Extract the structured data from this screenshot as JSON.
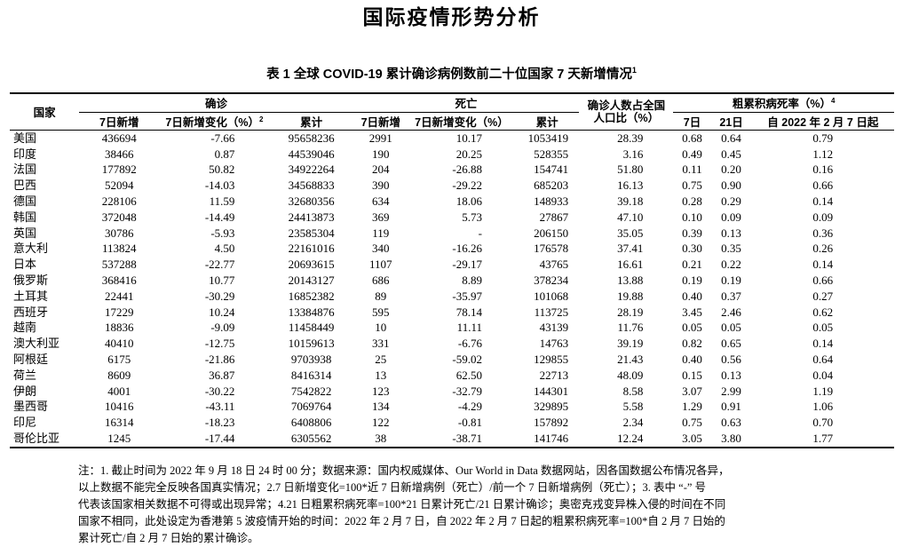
{
  "page": {
    "title": "国际疫情形势分析"
  },
  "table": {
    "caption": {
      "text": "表 1 全球 COVID-19 累计确诊病例数前二十位国家 7 天新增情况",
      "sup": "1"
    },
    "header": {
      "country": "国家",
      "confirmed_group": "确诊",
      "death_group": "死亡",
      "pop_ratio_line1": "确诊人数占全国",
      "pop_ratio_line2": "人口比（%）",
      "cfr_group": "粗累积病死率（%）",
      "cfr_group_sup": "4",
      "sub": {
        "new7": "7日新增",
        "new7_change": "7日新增变化（%）",
        "new7_change_sup": "2",
        "cumulative": "累计",
        "d_new7": "7日新增",
        "d_new7_change": "7日新增变化（%）",
        "d_cumulative": "累计",
        "day7": "7日",
        "day21": "21日",
        "since_feb7": "自 2022 年 2 月 7 日起"
      }
    },
    "rows": [
      [
        "美国",
        "436694",
        "-7.66",
        "95658236",
        "2991",
        "10.17",
        "1053419",
        "28.39",
        "0.68",
        "0.64",
        "0.79"
      ],
      [
        "印度",
        "38466",
        "0.87",
        "44539046",
        "190",
        "20.25",
        "528355",
        "3.16",
        "0.49",
        "0.45",
        "1.12"
      ],
      [
        "法国",
        "177892",
        "50.82",
        "34922264",
        "204",
        "-26.88",
        "154741",
        "51.80",
        "0.11",
        "0.20",
        "0.16"
      ],
      [
        "巴西",
        "52094",
        "-14.03",
        "34568833",
        "390",
        "-29.22",
        "685203",
        "16.13",
        "0.75",
        "0.90",
        "0.66"
      ],
      [
        "德国",
        "228106",
        "11.59",
        "32680356",
        "634",
        "18.06",
        "148933",
        "39.18",
        "0.28",
        "0.29",
        "0.14"
      ],
      [
        "韩国",
        "372048",
        "-14.49",
        "24413873",
        "369",
        "5.73",
        "27867",
        "47.10",
        "0.10",
        "0.09",
        "0.09"
      ],
      [
        "英国",
        "30786",
        "-5.93",
        "23585304",
        "119",
        "-",
        "206150",
        "35.05",
        "0.39",
        "0.13",
        "0.36"
      ],
      [
        "意大利",
        "113824",
        "4.50",
        "22161016",
        "340",
        "-16.26",
        "176578",
        "37.41",
        "0.30",
        "0.35",
        "0.26"
      ],
      [
        "日本",
        "537288",
        "-22.77",
        "20693615",
        "1107",
        "-29.17",
        "43765",
        "16.61",
        "0.21",
        "0.22",
        "0.14"
      ],
      [
        "俄罗斯",
        "368416",
        "10.77",
        "20143127",
        "686",
        "8.89",
        "378234",
        "13.88",
        "0.19",
        "0.19",
        "0.66"
      ],
      [
        "土耳其",
        "22441",
        "-30.29",
        "16852382",
        "89",
        "-35.97",
        "101068",
        "19.88",
        "0.40",
        "0.37",
        "0.27"
      ],
      [
        "西班牙",
        "17229",
        "10.24",
        "13384876",
        "595",
        "78.14",
        "113725",
        "28.19",
        "3.45",
        "2.46",
        "0.62"
      ],
      [
        "越南",
        "18836",
        "-9.09",
        "11458449",
        "10",
        "11.11",
        "43139",
        "11.76",
        "0.05",
        "0.05",
        "0.05"
      ],
      [
        "澳大利亚",
        "40410",
        "-12.75",
        "10159613",
        "331",
        "-6.76",
        "14763",
        "39.19",
        "0.82",
        "0.65",
        "0.14"
      ],
      [
        "阿根廷",
        "6175",
        "-21.86",
        "9703938",
        "25",
        "-59.02",
        "129855",
        "21.43",
        "0.40",
        "0.56",
        "0.64"
      ],
      [
        "荷兰",
        "8609",
        "36.87",
        "8416314",
        "13",
        "62.50",
        "22713",
        "48.09",
        "0.15",
        "0.13",
        "0.04"
      ],
      [
        "伊朗",
        "4001",
        "-30.22",
        "7542822",
        "123",
        "-32.79",
        "144301",
        "8.58",
        "3.07",
        "2.99",
        "1.19"
      ],
      [
        "墨西哥",
        "10416",
        "-43.11",
        "7069764",
        "134",
        "-4.29",
        "329895",
        "5.58",
        "1.29",
        "0.91",
        "1.06"
      ],
      [
        "印尼",
        "16314",
        "-18.23",
        "6408806",
        "122",
        "-0.81",
        "157892",
        "2.34",
        "0.75",
        "0.63",
        "0.70"
      ],
      [
        "哥伦比亚",
        "1245",
        "-17.44",
        "6305562",
        "38",
        "-38.71",
        "141746",
        "12.24",
        "3.05",
        "3.80",
        "1.77"
      ]
    ]
  },
  "notes": {
    "lines": [
      "注：1. 截止时间为 2022 年 9 月 18 日 24 时 00 分；数据来源：国内权威媒体、Our World in Data 数据网站，因各国数据公布情况各异，",
      "以上数据不能完全反映各国真实情况；2.7 日新增变化=100*近 7 日新增病例（死亡）/前一个 7 日新增病例（死亡）；3. 表中 “-” 号",
      "代表该国家相关数据不可得或出现异常；4.21 日粗累积病死率=100*21 日累计死亡/21 日累计确诊；奥密克戎变异株入侵的时间在不同",
      "国家不相同，此处设定为香港第 5 波疫情开始的时间：2022 年 2 月 7 日，自 2022 年 2 月 7 日起的粗累积病死率=100*自 2 月 7 日始的",
      "累计死亡/自 2 月 7 日始的累计确诊。"
    ]
  }
}
